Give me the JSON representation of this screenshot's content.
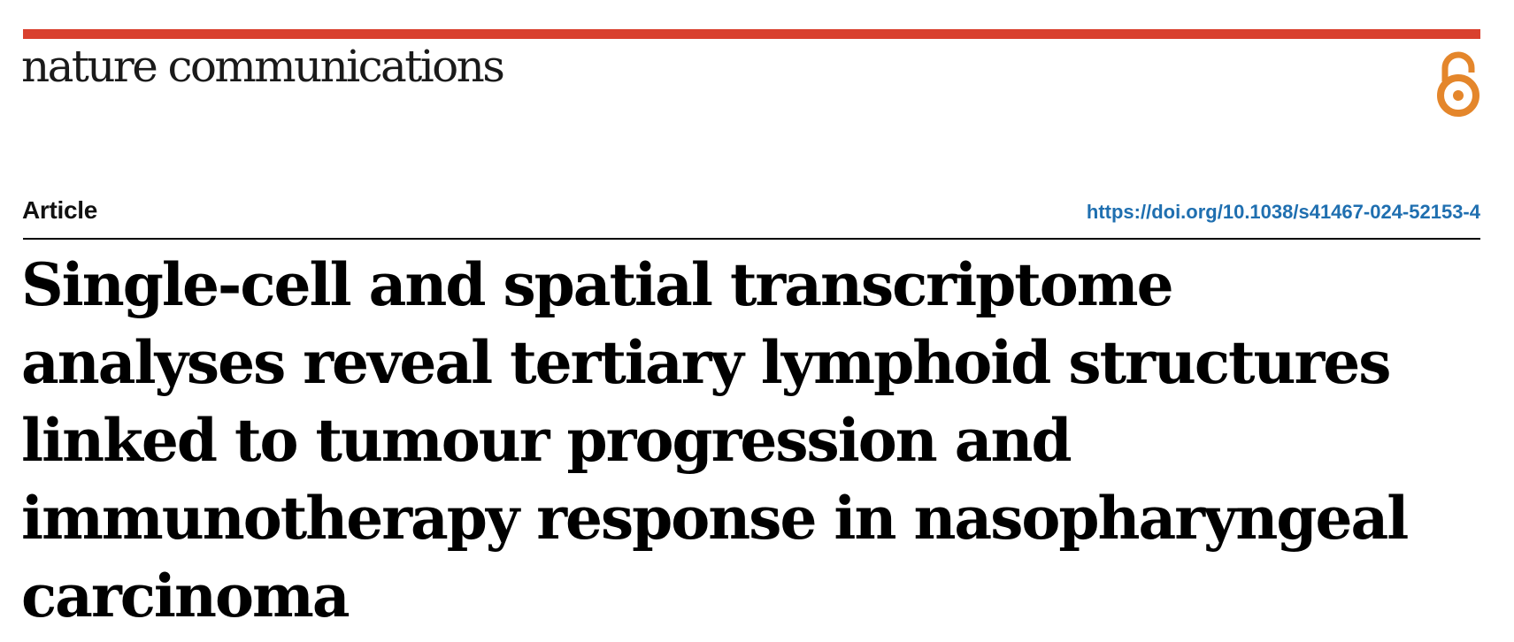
{
  "header": {
    "journal": "nature communications",
    "brand_color": "#d9402e",
    "open_access_icon": "open-access-icon",
    "open_access_color": "#e4862b"
  },
  "meta": {
    "article_type": "Article",
    "doi": "https://doi.org/10.1038/s41467-024-52153-4",
    "doi_color": "#1f6fb0"
  },
  "title": {
    "lines": [
      "Single-cell and spatial transcriptome",
      "analyses reveal tertiary lymphoid structures",
      "linked to tumour progression and",
      "immunotherapy response in nasopharyngeal",
      "carcinoma"
    ]
  }
}
